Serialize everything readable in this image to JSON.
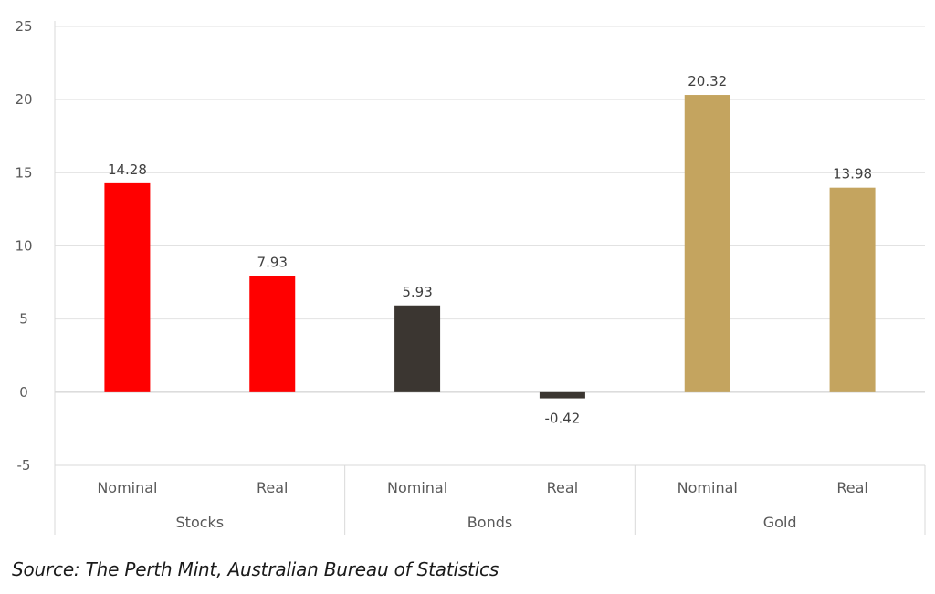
{
  "chart_data": {
    "type": "bar",
    "groups": [
      {
        "name": "Stocks",
        "categories": [
          "Nominal",
          "Real"
        ],
        "values": [
          14.28,
          7.93
        ],
        "color": "#ff0000"
      },
      {
        "name": "Bonds",
        "categories": [
          "Nominal",
          "Real"
        ],
        "values": [
          5.93,
          -0.42
        ],
        "color": "#3b3631"
      },
      {
        "name": "Gold",
        "categories": [
          "Nominal",
          "Real"
        ],
        "values": [
          20.32,
          13.98
        ],
        "color": "#c4a45f"
      }
    ],
    "data_labels": [
      "14.28",
      "7.93",
      "5.93",
      "-0.42",
      "20.32",
      "13.98"
    ],
    "y_ticks": [
      "25",
      "20",
      "15",
      "10",
      "5",
      "0",
      "-5"
    ],
    "ylim": [
      -5,
      25
    ],
    "grid": true,
    "title": "",
    "xlabel": "",
    "ylabel": ""
  },
  "source_text": "Source: The Perth Mint, Australian Bureau of Statistics"
}
